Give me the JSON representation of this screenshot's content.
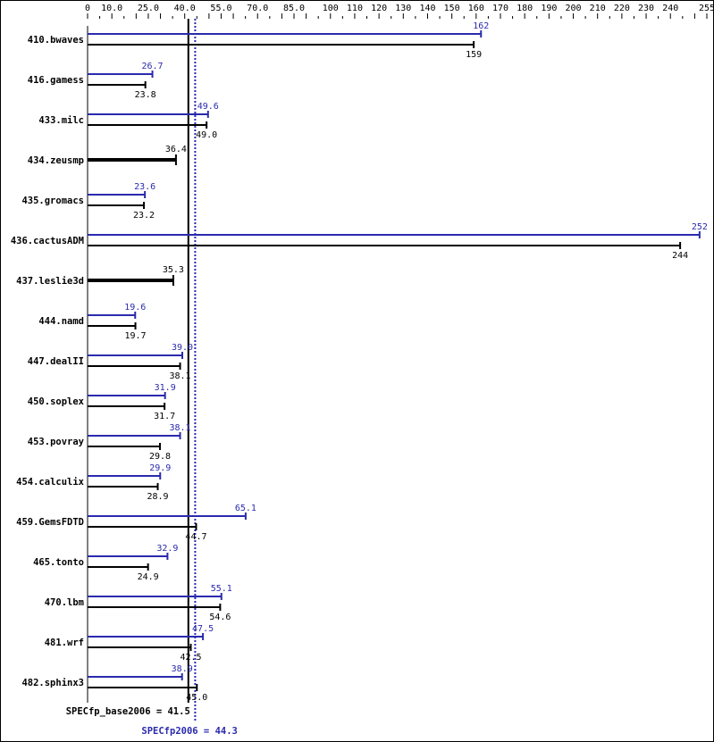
{
  "chart_data": {
    "type": "bar",
    "orientation": "horizontal",
    "xlim": [
      0,
      255
    ],
    "x_tick_labels": [
      "0",
      "10.0",
      "25.0",
      "40.0",
      "55.0",
      "70.0",
      "85.0",
      "100",
      "110",
      "120",
      "130",
      "140",
      "150",
      "160",
      "170",
      "180",
      "190",
      "200",
      "210",
      "220",
      "230",
      "240",
      "255"
    ],
    "x_tick_values": [
      0,
      10,
      25,
      40,
      55,
      70,
      85,
      100,
      110,
      120,
      130,
      140,
      150,
      160,
      170,
      180,
      190,
      200,
      210,
      220,
      230,
      240,
      255
    ],
    "categories": [
      "410.bwaves",
      "416.gamess",
      "433.milc",
      "434.zeusmp",
      "435.gromacs",
      "436.cactusADM",
      "437.leslie3d",
      "444.namd",
      "447.dealII",
      "450.soplex",
      "453.povray",
      "454.calculix",
      "459.GemsFDTD",
      "465.tonto",
      "470.lbm",
      "481.wrf",
      "482.sphinx3"
    ],
    "series": [
      {
        "key": "peak",
        "color": "#2a2aae",
        "values": [
          162,
          26.7,
          49.6,
          null,
          23.6,
          252,
          null,
          19.6,
          39.0,
          31.9,
          38.1,
          29.9,
          65.1,
          32.9,
          55.1,
          47.5,
          38.9
        ],
        "labels": [
          "162",
          "26.7",
          "49.6",
          null,
          "23.6",
          "252",
          null,
          "19.6",
          "39.0",
          "31.9",
          "38.1",
          "29.9",
          "65.1",
          "32.9",
          "55.1",
          "47.5",
          "38.9"
        ]
      },
      {
        "key": "base",
        "color": "#000000",
        "values": [
          159,
          23.8,
          49.0,
          36.4,
          23.2,
          244,
          35.3,
          19.7,
          38.1,
          31.7,
          29.8,
          28.9,
          44.7,
          24.9,
          54.6,
          42.5,
          45.0
        ],
        "labels": [
          "159",
          "23.8",
          "49.0",
          "36.4",
          "23.2",
          "244",
          "35.3",
          "19.7",
          "38.1",
          "31.7",
          "29.8",
          "28.9",
          "44.7",
          "24.9",
          "54.6",
          "42.5",
          "45.0"
        ]
      }
    ],
    "reference_lines": [
      {
        "key": "base",
        "value": 41.5,
        "label": "SPECfp_base2006 = 41.5",
        "color": "#000000",
        "style": "solid"
      },
      {
        "key": "peak",
        "value": 44.3,
        "label": "SPECfp2006 = 44.3",
        "color": "#2a2aae",
        "style": "dotted"
      }
    ],
    "grid": false
  }
}
